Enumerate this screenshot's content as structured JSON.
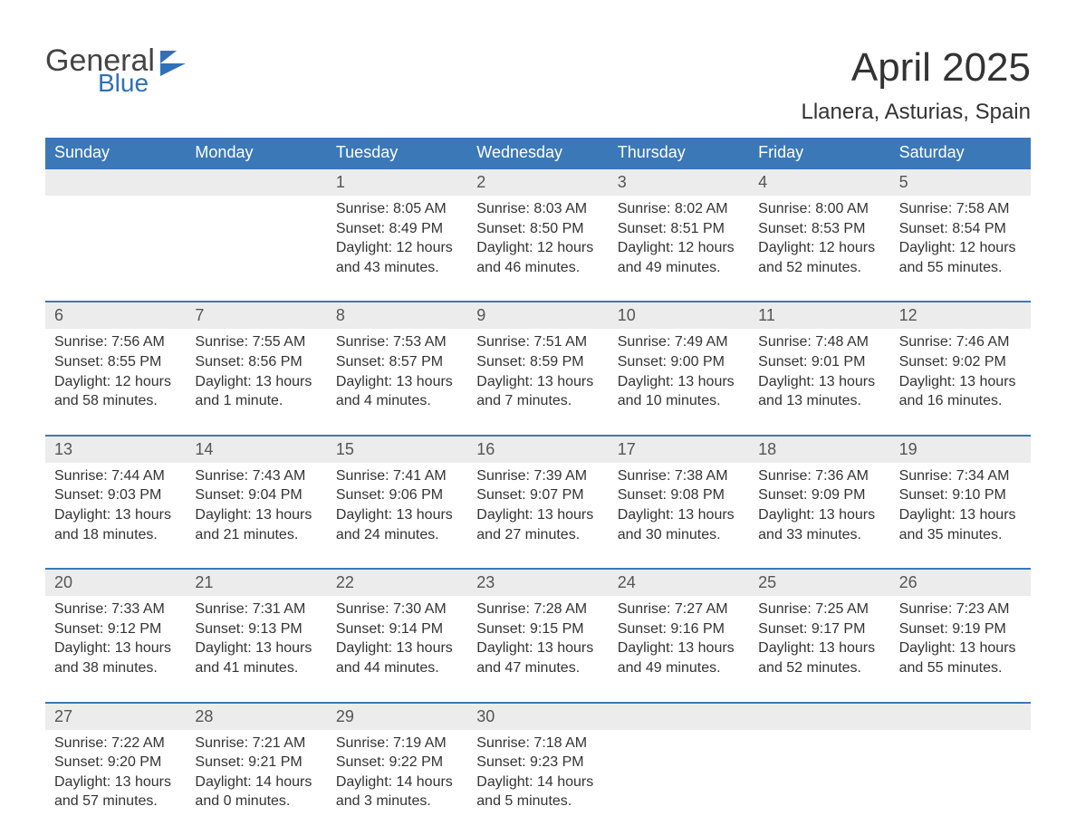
{
  "logo": {
    "word1": "General",
    "word2": "Blue",
    "icon_color": "#2f71b8"
  },
  "title": "April 2025",
  "location": "Llanera, Asturias, Spain",
  "colors": {
    "header_bg": "#3b78b8",
    "header_text": "#ffffff",
    "daynum_bg": "#ececec",
    "text": "#333333",
    "week_border": "#3b78b8"
  },
  "fonts": {
    "title_size_pt": 33,
    "location_size_pt": 18,
    "dow_size_pt": 14,
    "daynum_size_pt": 14,
    "cell_size_pt": 12
  },
  "days_of_week": [
    "Sunday",
    "Monday",
    "Tuesday",
    "Wednesday",
    "Thursday",
    "Friday",
    "Saturday"
  ],
  "weeks": [
    [
      null,
      null,
      {
        "n": "1",
        "sunrise": "8:05 AM",
        "sunset": "8:49 PM",
        "dl1": "Daylight: 12 hours",
        "dl2": "and 43 minutes."
      },
      {
        "n": "2",
        "sunrise": "8:03 AM",
        "sunset": "8:50 PM",
        "dl1": "Daylight: 12 hours",
        "dl2": "and 46 minutes."
      },
      {
        "n": "3",
        "sunrise": "8:02 AM",
        "sunset": "8:51 PM",
        "dl1": "Daylight: 12 hours",
        "dl2": "and 49 minutes."
      },
      {
        "n": "4",
        "sunrise": "8:00 AM",
        "sunset": "8:53 PM",
        "dl1": "Daylight: 12 hours",
        "dl2": "and 52 minutes."
      },
      {
        "n": "5",
        "sunrise": "7:58 AM",
        "sunset": "8:54 PM",
        "dl1": "Daylight: 12 hours",
        "dl2": "and 55 minutes."
      }
    ],
    [
      {
        "n": "6",
        "sunrise": "7:56 AM",
        "sunset": "8:55 PM",
        "dl1": "Daylight: 12 hours",
        "dl2": "and 58 minutes."
      },
      {
        "n": "7",
        "sunrise": "7:55 AM",
        "sunset": "8:56 PM",
        "dl1": "Daylight: 13 hours",
        "dl2": "and 1 minute."
      },
      {
        "n": "8",
        "sunrise": "7:53 AM",
        "sunset": "8:57 PM",
        "dl1": "Daylight: 13 hours",
        "dl2": "and 4 minutes."
      },
      {
        "n": "9",
        "sunrise": "7:51 AM",
        "sunset": "8:59 PM",
        "dl1": "Daylight: 13 hours",
        "dl2": "and 7 minutes."
      },
      {
        "n": "10",
        "sunrise": "7:49 AM",
        "sunset": "9:00 PM",
        "dl1": "Daylight: 13 hours",
        "dl2": "and 10 minutes."
      },
      {
        "n": "11",
        "sunrise": "7:48 AM",
        "sunset": "9:01 PM",
        "dl1": "Daylight: 13 hours",
        "dl2": "and 13 minutes."
      },
      {
        "n": "12",
        "sunrise": "7:46 AM",
        "sunset": "9:02 PM",
        "dl1": "Daylight: 13 hours",
        "dl2": "and 16 minutes."
      }
    ],
    [
      {
        "n": "13",
        "sunrise": "7:44 AM",
        "sunset": "9:03 PM",
        "dl1": "Daylight: 13 hours",
        "dl2": "and 18 minutes."
      },
      {
        "n": "14",
        "sunrise": "7:43 AM",
        "sunset": "9:04 PM",
        "dl1": "Daylight: 13 hours",
        "dl2": "and 21 minutes."
      },
      {
        "n": "15",
        "sunrise": "7:41 AM",
        "sunset": "9:06 PM",
        "dl1": "Daylight: 13 hours",
        "dl2": "and 24 minutes."
      },
      {
        "n": "16",
        "sunrise": "7:39 AM",
        "sunset": "9:07 PM",
        "dl1": "Daylight: 13 hours",
        "dl2": "and 27 minutes."
      },
      {
        "n": "17",
        "sunrise": "7:38 AM",
        "sunset": "9:08 PM",
        "dl1": "Daylight: 13 hours",
        "dl2": "and 30 minutes."
      },
      {
        "n": "18",
        "sunrise": "7:36 AM",
        "sunset": "9:09 PM",
        "dl1": "Daylight: 13 hours",
        "dl2": "and 33 minutes."
      },
      {
        "n": "19",
        "sunrise": "7:34 AM",
        "sunset": "9:10 PM",
        "dl1": "Daylight: 13 hours",
        "dl2": "and 35 minutes."
      }
    ],
    [
      {
        "n": "20",
        "sunrise": "7:33 AM",
        "sunset": "9:12 PM",
        "dl1": "Daylight: 13 hours",
        "dl2": "and 38 minutes."
      },
      {
        "n": "21",
        "sunrise": "7:31 AM",
        "sunset": "9:13 PM",
        "dl1": "Daylight: 13 hours",
        "dl2": "and 41 minutes."
      },
      {
        "n": "22",
        "sunrise": "7:30 AM",
        "sunset": "9:14 PM",
        "dl1": "Daylight: 13 hours",
        "dl2": "and 44 minutes."
      },
      {
        "n": "23",
        "sunrise": "7:28 AM",
        "sunset": "9:15 PM",
        "dl1": "Daylight: 13 hours",
        "dl2": "and 47 minutes."
      },
      {
        "n": "24",
        "sunrise": "7:27 AM",
        "sunset": "9:16 PM",
        "dl1": "Daylight: 13 hours",
        "dl2": "and 49 minutes."
      },
      {
        "n": "25",
        "sunrise": "7:25 AM",
        "sunset": "9:17 PM",
        "dl1": "Daylight: 13 hours",
        "dl2": "and 52 minutes."
      },
      {
        "n": "26",
        "sunrise": "7:23 AM",
        "sunset": "9:19 PM",
        "dl1": "Daylight: 13 hours",
        "dl2": "and 55 minutes."
      }
    ],
    [
      {
        "n": "27",
        "sunrise": "7:22 AM",
        "sunset": "9:20 PM",
        "dl1": "Daylight: 13 hours",
        "dl2": "and 57 minutes."
      },
      {
        "n": "28",
        "sunrise": "7:21 AM",
        "sunset": "9:21 PM",
        "dl1": "Daylight: 14 hours",
        "dl2": "and 0 minutes."
      },
      {
        "n": "29",
        "sunrise": "7:19 AM",
        "sunset": "9:22 PM",
        "dl1": "Daylight: 14 hours",
        "dl2": "and 3 minutes."
      },
      {
        "n": "30",
        "sunrise": "7:18 AM",
        "sunset": "9:23 PM",
        "dl1": "Daylight: 14 hours",
        "dl2": "and 5 minutes."
      },
      null,
      null,
      null
    ]
  ],
  "labels": {
    "sunrise_prefix": "Sunrise: ",
    "sunset_prefix": "Sunset: "
  }
}
